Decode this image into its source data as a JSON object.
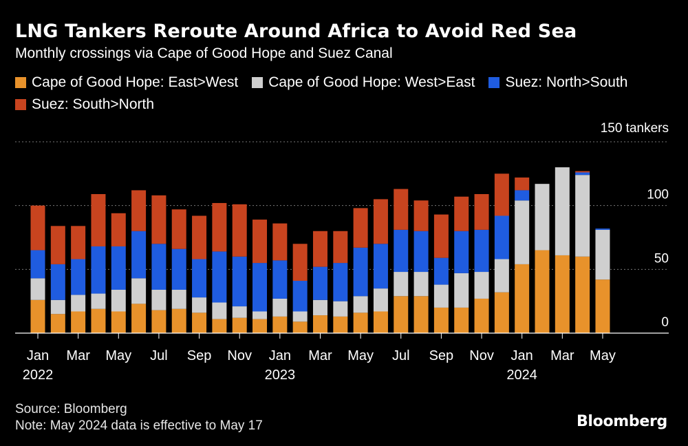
{
  "header": {
    "title": "LNG Tankers Reroute Around Africa to Avoid Red Sea",
    "subtitle": "Monthly crossings via Cape of Good Hope and Suez Canal"
  },
  "footer": {
    "source": "Source: Bloomberg",
    "note": "Note: May 2024 data is effective to May 17",
    "brand": "Bloomberg"
  },
  "colors": {
    "background": "#000000",
    "cape_east_west": "#e8922b",
    "cape_west_east": "#cfcfcf",
    "suez_north_south": "#1f5ce0",
    "suez_south_north": "#c8441f",
    "grid": "#7a7a7a"
  },
  "chart_data": {
    "type": "bar",
    "stacked": true,
    "title": "LNG Tankers Reroute Around Africa to Avoid Red Sea",
    "subtitle": "Monthly crossings via Cape of Good Hope and Suez Canal",
    "xlabel": "",
    "ylabel": "",
    "y_unit_label": "150 tankers",
    "ylim": [
      0,
      150
    ],
    "y_ticks": [
      0,
      50,
      100,
      150
    ],
    "grid": true,
    "categories": [
      "Jan 2022",
      "Feb 2022",
      "Mar 2022",
      "Apr 2022",
      "May 2022",
      "Jun 2022",
      "Jul 2022",
      "Aug 2022",
      "Sep 2022",
      "Oct 2022",
      "Nov 2022",
      "Dec 2022",
      "Jan 2023",
      "Feb 2023",
      "Mar 2023",
      "Apr 2023",
      "May 2023",
      "Jun 2023",
      "Jul 2023",
      "Aug 2023",
      "Sep 2023",
      "Oct 2023",
      "Nov 2023",
      "Dec 2023",
      "Jan 2024",
      "Feb 2024",
      "Mar 2024",
      "Apr 2024",
      "May 2024"
    ],
    "x_tick_labels": [
      {
        "index": 0,
        "month": "Jan",
        "year": "2022"
      },
      {
        "index": 2,
        "month": "Mar",
        "year": ""
      },
      {
        "index": 4,
        "month": "May",
        "year": ""
      },
      {
        "index": 6,
        "month": "Jul",
        "year": ""
      },
      {
        "index": 8,
        "month": "Sep",
        "year": ""
      },
      {
        "index": 10,
        "month": "Nov",
        "year": ""
      },
      {
        "index": 12,
        "month": "Jan",
        "year": "2023"
      },
      {
        "index": 14,
        "month": "Mar",
        "year": ""
      },
      {
        "index": 16,
        "month": "May",
        "year": ""
      },
      {
        "index": 18,
        "month": "Jul",
        "year": ""
      },
      {
        "index": 20,
        "month": "Sep",
        "year": ""
      },
      {
        "index": 22,
        "month": "Nov",
        "year": ""
      },
      {
        "index": 24,
        "month": "Jan",
        "year": "2024"
      },
      {
        "index": 26,
        "month": "Mar",
        "year": ""
      },
      {
        "index": 28,
        "month": "May",
        "year": ""
      }
    ],
    "series": [
      {
        "name": "Cape of Good Hope: East>West",
        "key": "cape_east_west",
        "values": [
          26,
          15,
          17,
          19,
          17,
          23,
          18,
          19,
          16,
          11,
          12,
          11,
          13,
          9,
          14,
          13,
          16,
          17,
          29,
          29,
          20,
          20,
          27,
          32,
          54,
          65,
          61,
          60,
          42
        ]
      },
      {
        "name": "Cape of Good Hope: West>East",
        "key": "cape_west_east",
        "values": [
          17,
          11,
          13,
          12,
          17,
          20,
          16,
          15,
          12,
          13,
          9,
          6,
          14,
          8,
          12,
          12,
          13,
          18,
          19,
          19,
          18,
          27,
          21,
          26,
          50,
          52,
          69,
          64,
          39
        ]
      },
      {
        "name": "Suez: North>South",
        "key": "suez_north_south",
        "values": [
          22,
          28,
          28,
          37,
          34,
          37,
          36,
          32,
          30,
          40,
          39,
          38,
          30,
          24,
          26,
          30,
          38,
          35,
          33,
          32,
          21,
          33,
          33,
          34,
          8,
          0,
          0,
          2,
          1
        ]
      },
      {
        "name": "Suez: South>North",
        "key": "suez_south_north",
        "values": [
          35,
          30,
          26,
          41,
          26,
          32,
          38,
          31,
          34,
          38,
          41,
          34,
          29,
          29,
          28,
          25,
          31,
          35,
          32,
          24,
          34,
          27,
          28,
          33,
          10,
          0,
          0,
          1,
          0
        ]
      }
    ]
  }
}
